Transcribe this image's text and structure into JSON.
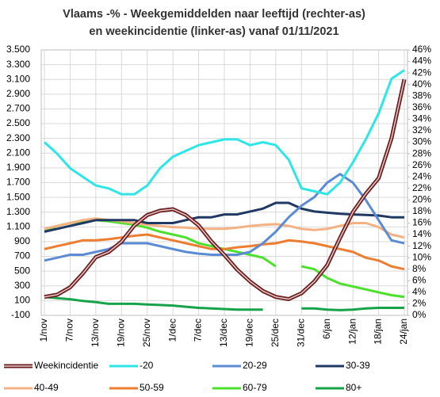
{
  "chart_data": {
    "type": "line",
    "title": [
      "Vlaams -% - Weekgemiddelden naar leeftijd (rechter-as)",
      "en weekincidentie (linker-as) vanaf 01/11/2021"
    ],
    "categories": [
      "1/nov",
      null,
      "7/nov",
      null,
      "13/nov",
      null,
      "19/nov",
      null,
      "25/nov",
      null,
      "1/dec",
      null,
      "7/dec",
      null,
      "13/dec",
      null,
      "19/dec",
      null,
      "25/dec",
      null,
      "31/dec",
      null,
      "6/jan",
      null,
      "12/jan",
      null,
      "18/jan",
      null,
      "24/jan"
    ],
    "ylim": [
      -100,
      3500
    ],
    "yticks": [
      {
        "value": -100,
        "label": "-100"
      },
      100,
      300,
      500,
      700,
      900,
      {
        "value": 1100,
        "label": "1.100"
      },
      {
        "value": 1300,
        "label": "1.300"
      },
      {
        "value": 1500,
        "label": "1.500"
      },
      {
        "value": 1700,
        "label": "1.700"
      },
      {
        "value": 1900,
        "label": "1.900"
      },
      {
        "value": 2100,
        "label": "2.100"
      },
      {
        "value": 2300,
        "label": "2.300"
      },
      {
        "value": 2500,
        "label": "2.500"
      },
      {
        "value": 2700,
        "label": "2.700"
      },
      {
        "value": 2900,
        "label": "2.900"
      },
      {
        "value": 3100,
        "label": "3.100"
      },
      {
        "value": 3300,
        "label": "3.300"
      },
      {
        "value": 3500,
        "label": "3.500"
      }
    ],
    "y2lim": [
      0,
      46
    ],
    "y2ticks": [
      {
        "value": 0,
        "label": "0%"
      },
      {
        "value": 2,
        "label": "2%"
      },
      {
        "value": 4,
        "label": "4%"
      },
      {
        "value": 6,
        "label": "6%"
      },
      {
        "value": 8,
        "label": "8%"
      },
      {
        "value": 10,
        "label": "10%"
      },
      {
        "value": 12,
        "label": "12%"
      },
      {
        "value": 14,
        "label": "14%"
      },
      {
        "value": 16,
        "label": "16%"
      },
      {
        "value": 18,
        "label": "18%"
      },
      {
        "value": 20,
        "label": "20%"
      },
      {
        "value": 22,
        "label": "22%"
      },
      {
        "value": 24,
        "label": "24%"
      },
      {
        "value": 26,
        "label": "26%"
      },
      {
        "value": 28,
        "label": "28%"
      },
      {
        "value": 30,
        "label": "30%"
      },
      {
        "value": 32,
        "label": "32%"
      },
      {
        "value": 34,
        "label": "34%"
      },
      {
        "value": 36,
        "label": "36%"
      },
      {
        "value": 38,
        "label": "38%"
      },
      {
        "value": 40,
        "label": "40%"
      },
      {
        "value": 42,
        "label": "42%"
      },
      {
        "value": 44,
        "label": "44%"
      },
      {
        "value": 46,
        "label": "46%"
      }
    ],
    "grid": true,
    "series": [
      {
        "name": "Weekincidentie",
        "color": "#6b1f1f",
        "axis": "y",
        "values": [
          150,
          180,
          280,
          470,
          690,
          760,
          900,
          1120,
          1260,
          1320,
          1340,
          1260,
          1120,
          900,
          720,
          520,
          360,
          230,
          150,
          120,
          200,
          360,
          580,
          950,
          1300,
          1550,
          1760,
          2300,
          3100
        ]
      },
      {
        "name": "-20",
        "color": "#2ee6e6",
        "axis": "y2",
        "values": [
          30,
          28,
          25.5,
          24,
          22.5,
          22,
          21,
          21,
          22.5,
          25.5,
          27.5,
          28.5,
          29.5,
          30,
          30.5,
          30.5,
          29.5,
          30,
          29.5,
          27,
          22,
          21.5,
          21,
          23,
          26.5,
          30.5,
          35,
          41,
          42.5
        ]
      },
      {
        "name": "20-29",
        "color": "#5b8bd4",
        "axis": "y2",
        "values": [
          9.5,
          10,
          10.5,
          10.5,
          11,
          11.5,
          12.5,
          12.5,
          12.5,
          12,
          11.5,
          11,
          10.7,
          10.5,
          10.5,
          10.5,
          11,
          12.5,
          14.5,
          17,
          19,
          20.5,
          23,
          24.5,
          23,
          20,
          16.5,
          13,
          12.5
        ]
      },
      {
        "name": "30-39",
        "color": "#1f3864",
        "axis": "y2",
        "values": [
          14.5,
          15,
          15.5,
          16,
          16.5,
          16.5,
          16.5,
          16.5,
          16,
          16,
          16,
          16.5,
          17,
          17,
          17.5,
          17.5,
          18,
          18.5,
          19.5,
          19.5,
          18.5,
          18,
          17.8,
          17.6,
          17.5,
          17.4,
          17.3,
          17,
          17
        ]
      },
      {
        "name": "40-49",
        "color": "#f4b183",
        "axis": "y2",
        "values": [
          15,
          15.5,
          16,
          16.5,
          16.8,
          16.5,
          16.3,
          16,
          15.7,
          15.5,
          15.3,
          15.2,
          15,
          15,
          15,
          15.2,
          15.5,
          15.7,
          15.8,
          15.5,
          15,
          14.8,
          15,
          15.5,
          16,
          16,
          15.3,
          14,
          13.5
        ]
      },
      {
        "name": "50-59",
        "color": "#ed7d31",
        "axis": "y2",
        "values": [
          11.5,
          12,
          12.5,
          13,
          13,
          13.2,
          13.5,
          13.8,
          14,
          13.5,
          13,
          12.5,
          12,
          11.5,
          11.5,
          11.8,
          12,
          12.3,
          12.5,
          13,
          12.8,
          12.5,
          12,
          11.5,
          11,
          10,
          9.5,
          8.5,
          8
        ]
      },
      {
        "name": "60-79",
        "color": "#4ce02c",
        "axis": "y2",
        "values": [
          14.5,
          15.5,
          16,
          16.3,
          16.5,
          16.3,
          16,
          15.7,
          15.2,
          14.5,
          14,
          13.5,
          12.5,
          12,
          11.5,
          11,
          10.5,
          10,
          8.5,
          null,
          8.5,
          8,
          6.5,
          5.5,
          5,
          4.5,
          4,
          3.5,
          3.2
        ]
      },
      {
        "name": "80+",
        "color": "#16a34a",
        "axis": "y2",
        "values": [
          3.2,
          3,
          2.8,
          2.5,
          2.3,
          2,
          2,
          2,
          1.9,
          1.8,
          1.7,
          1.5,
          1.3,
          1.2,
          1.1,
          1,
          1,
          1,
          null,
          null,
          1.2,
          1.2,
          1,
          0.9,
          1,
          1.2,
          1.3,
          1.3,
          1.3
        ]
      }
    ]
  }
}
